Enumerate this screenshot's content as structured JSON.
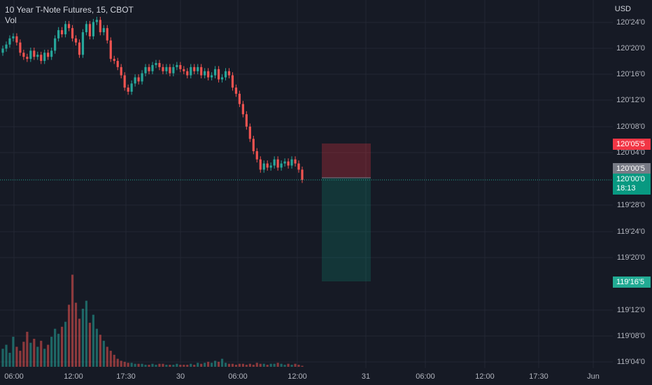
{
  "legend": {
    "symbol": "10 Year T-Note Futures, 15, CBOT",
    "vol_label": "Vol"
  },
  "currency": "USD",
  "colors": {
    "bg": "#161a25",
    "grid": "#232733",
    "up": "#26a69a",
    "down": "#ef5350",
    "stop_zone": "#f23645",
    "target_zone": "#089981",
    "current_line": "#22ab94"
  },
  "y_axis": {
    "ticks": [
      "120'24'0",
      "120'20'0",
      "120'16'0",
      "120'12'0",
      "120'08'0",
      "120'04'0",
      "119'28'0",
      "119'24'0",
      "119'20'0",
      "119'12'0",
      "119'08'0",
      "119'04'0"
    ]
  },
  "x_axis": {
    "ticks": [
      "06:00",
      "12:00",
      "17:30",
      "30",
      "06:00",
      "12:00",
      "31",
      "06:00",
      "12:00",
      "17:30",
      "Jun"
    ]
  },
  "badges": {
    "stop": "120'05'5",
    "entry": "120'00'5",
    "current_price": "120'00'0",
    "countdown": "18:13",
    "target": "119'16'5"
  },
  "chart_data": {
    "type": "candlestick",
    "title": "10 Year T-Note Futures, 15, CBOT",
    "currency": "USD",
    "price_range_ticks": [
      "119'04'0",
      "120'24'0"
    ],
    "current_price": "120'00'0",
    "position": {
      "type": "short",
      "entry": "120'00'5",
      "stop": "120'05'5",
      "target": "119'16'5"
    },
    "closes": [
      120.64,
      120.66,
      120.69,
      120.7,
      120.67,
      120.62,
      120.6,
      120.59,
      120.63,
      120.6,
      120.61,
      120.58,
      120.62,
      120.6,
      120.63,
      120.69,
      120.73,
      120.71,
      120.76,
      120.74,
      120.69,
      120.67,
      120.61,
      120.72,
      120.76,
      120.7,
      120.77,
      120.78,
      120.72,
      120.74,
      120.68,
      120.59,
      120.58,
      120.55,
      120.51,
      120.45,
      120.43,
      120.47,
      120.5,
      120.48,
      120.52,
      120.55,
      120.53,
      120.56,
      120.57,
      120.55,
      120.53,
      120.55,
      120.52,
      120.55,
      120.56,
      120.54,
      120.53,
      120.51,
      120.55,
      120.53,
      120.55,
      120.51,
      120.53,
      120.5,
      120.51,
      120.54,
      120.49,
      120.5,
      120.53,
      120.51,
      120.45,
      120.42,
      120.37,
      120.32,
      120.26,
      120.2,
      120.14,
      120.1,
      120.05,
      120.08,
      120.06,
      120.07,
      120.1,
      120.06,
      120.08,
      120.09,
      120.07,
      120.1,
      120.08,
      120.05,
      120.0
    ],
    "volume": [
      18,
      22,
      14,
      30,
      20,
      16,
      25,
      35,
      24,
      28,
      20,
      26,
      18,
      22,
      30,
      38,
      33,
      40,
      45,
      62,
      92,
      64,
      48,
      58,
      66,
      44,
      52,
      38,
      32,
      26,
      20,
      16,
      12,
      8,
      6,
      5,
      4,
      4,
      3,
      3,
      3,
      2,
      2,
      3,
      2,
      3,
      3,
      2,
      2,
      2,
      3,
      2,
      2,
      2,
      3,
      2,
      4,
      3,
      4,
      5,
      4,
      6,
      5,
      8,
      4,
      3,
      3,
      2,
      3,
      3,
      2,
      3,
      2,
      4,
      3,
      3,
      2,
      3,
      3,
      4,
      3,
      2,
      3,
      2,
      3,
      2,
      1
    ]
  }
}
